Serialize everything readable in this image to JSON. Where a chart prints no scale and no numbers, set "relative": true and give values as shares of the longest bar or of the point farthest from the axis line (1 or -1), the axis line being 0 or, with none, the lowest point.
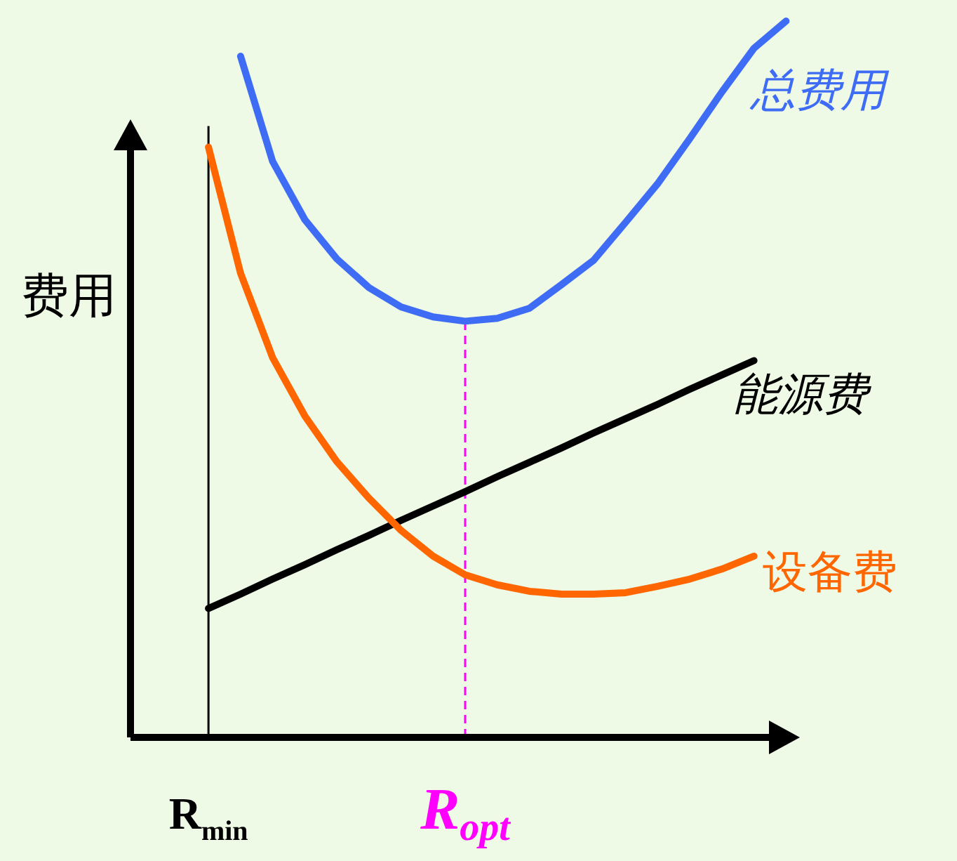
{
  "chart_data": {
    "type": "line",
    "relative": true,
    "ylabel": "费用",
    "categories": [
      null,
      null,
      "R$_{min}$",
      null,
      null,
      null,
      null,
      null,
      null,
      null,
      "R$_{opt}$",
      null,
      null,
      null,
      null,
      null,
      null,
      null,
      null,
      null,
      null
    ],
    "legend": false,
    "grid": false,
    "marker": "none",
    "line_style": "solid",
    "series": [
      {
        "name": "总费用",
        "color": "#3f6cf5",
        "values": [
          null,
          null,
          null,
          0.951,
          0.804,
          0.723,
          0.668,
          0.628,
          0.601,
          0.587,
          0.581,
          0.585,
          0.599,
          0.632,
          0.666,
          0.719,
          0.773,
          0.836,
          0.901,
          0.962,
          1.0
        ]
      },
      {
        "name": "能源费",
        "color": "#000000",
        "values": [
          null,
          null,
          0.18,
          0.2,
          0.221,
          0.241,
          0.262,
          0.282,
          0.303,
          0.323,
          0.343,
          0.364,
          0.384,
          0.404,
          0.425,
          0.445,
          0.465,
          0.486,
          0.506,
          0.526,
          null
        ]
      },
      {
        "name": "设备费",
        "color": "#ff6600",
        "values": [
          null,
          null,
          0.824,
          0.648,
          0.53,
          0.449,
          0.385,
          0.334,
          0.289,
          0.253,
          0.227,
          0.213,
          0.204,
          0.2,
          0.2,
          0.202,
          0.211,
          0.221,
          0.235,
          0.253,
          null
        ]
      }
    ],
    "ref_lines": [
      {
        "axis": "x",
        "value": "R$_{min}$",
        "color": "#000000",
        "line_style": "solid"
      },
      {
        "axis": "x",
        "value": "R$_{opt}$",
        "color": "#ff00ff",
        "line_style": "dashed"
      }
    ]
  }
}
